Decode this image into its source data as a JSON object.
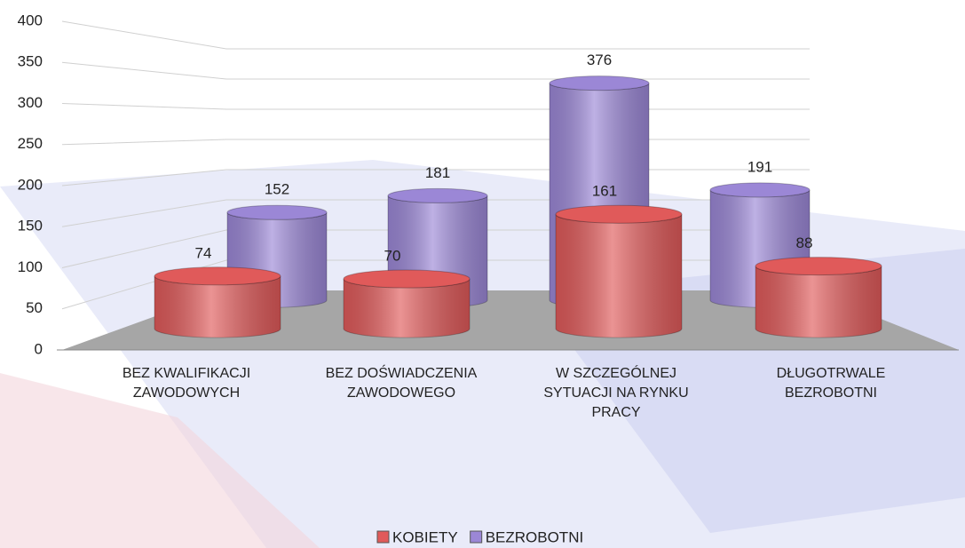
{
  "chart_data": {
    "type": "cylinder-bar",
    "categories": [
      "BEZ KWALIFIKACJI ZAWODOWYCH",
      "BEZ DOŚWIADCZENIA ZAWODOWEGO",
      "W SZCZEGÓLNEJ SYTUACJI NA RYNKU PRACY",
      "DŁUGOTRWALE BEZROBOTNI"
    ],
    "series": [
      {
        "name": "KOBIETY",
        "color": "#e05a5a",
        "values": [
          74,
          70,
          161,
          88
        ]
      },
      {
        "name": "BEZROBOTNI",
        "color": "#9b87d6",
        "values": [
          152,
          181,
          376,
          191
        ]
      }
    ],
    "ylim": [
      0,
      400
    ],
    "yticks": [
      0,
      50,
      100,
      150,
      200,
      250,
      300,
      350,
      400
    ],
    "grid": true,
    "legend": "bottom"
  }
}
